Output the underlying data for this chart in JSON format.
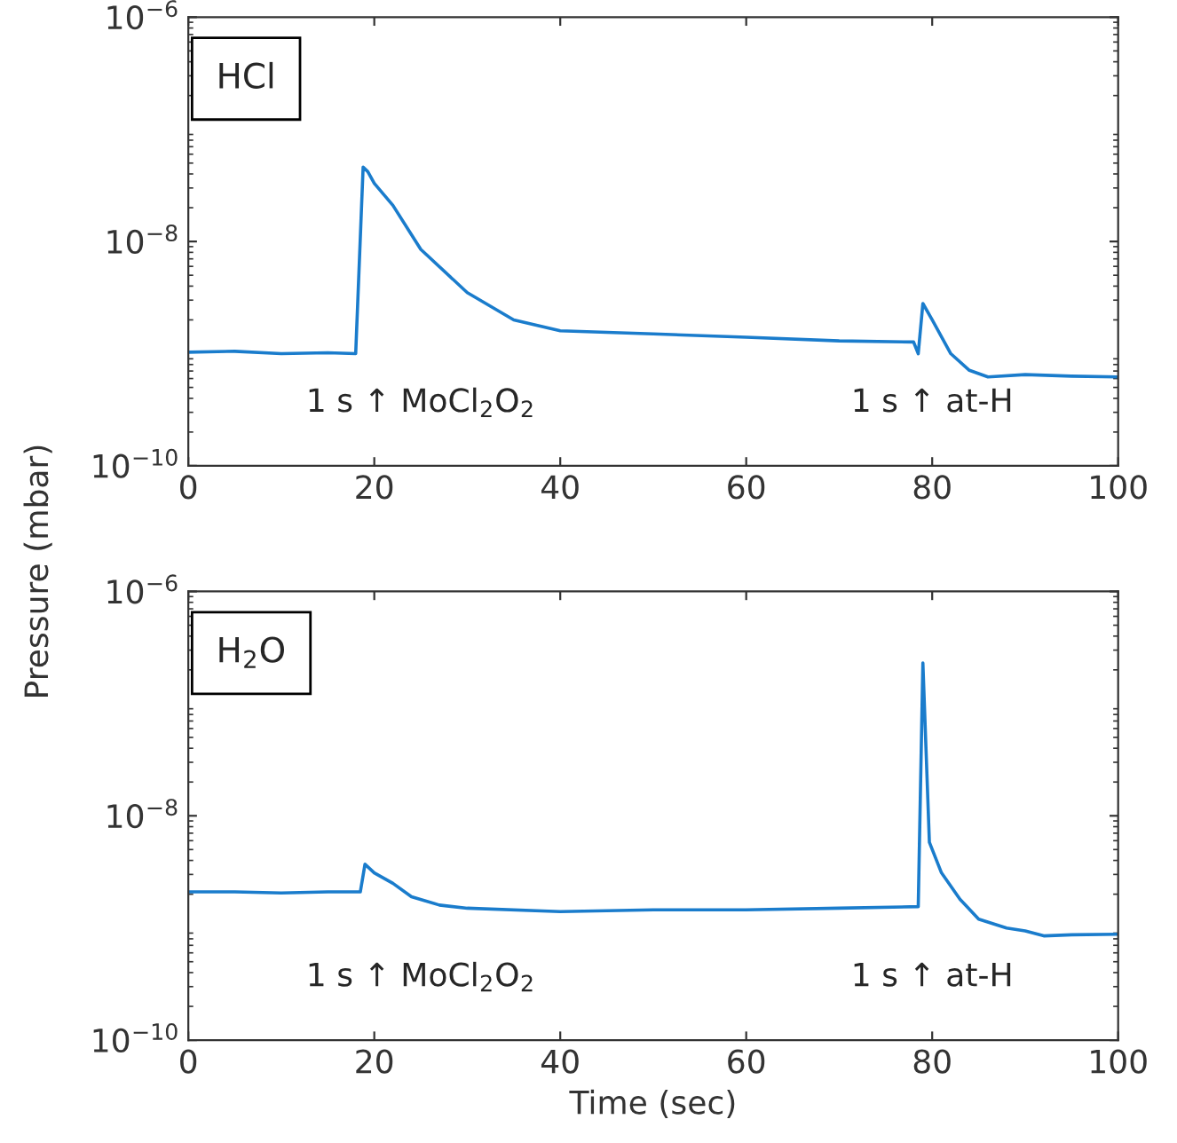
{
  "chart_data": [
    {
      "type": "line",
      "title": "HCl",
      "ylabel": "Pressure (mbar)",
      "log": "y",
      "grid": false,
      "legend": false,
      "xlim": [
        0,
        100
      ],
      "xticks": [
        0,
        20,
        40,
        60,
        80,
        100
      ],
      "ylim": [
        1e-10,
        1e-06
      ],
      "yticks": [
        {
          "value": 1e-10,
          "label": "10$^{−10}$"
        },
        {
          "value": 1e-08,
          "label": "10$^{−8}$"
        },
        {
          "value": 1e-06,
          "label": "10$^{−6}$"
        }
      ],
      "series": [
        {
          "color": "#1a7ccc",
          "x": [
            0,
            5,
            10,
            15,
            18,
            18.8,
            19.3,
            20,
            22,
            25,
            30,
            35,
            40,
            50,
            60,
            70,
            78,
            78.5,
            79,
            80,
            82,
            84,
            86,
            90,
            95,
            100
          ],
          "values": [
            1.03e-09,
            1.05e-09,
            1e-09,
            1.02e-09,
            1e-09,
            4.6e-08,
            4.2e-08,
            3.3e-08,
            2.1e-08,
            8.5e-09,
            3.5e-09,
            2e-09,
            1.6e-09,
            1.5e-09,
            1.4e-09,
            1.3e-09,
            1.27e-09,
            1e-09,
            2.8e-09,
            2e-09,
            1e-09,
            7.1e-10,
            6.2e-10,
            6.5e-10,
            6.3e-10,
            6.2e-10
          ]
        }
      ],
      "annotations": [
        "1 s ↑ MoCl$_{2}$O$_{2}$",
        "1 s ↑ at-H"
      ]
    },
    {
      "type": "line",
      "title": "H$_{2}$O",
      "xlabel": "Time (sec)",
      "log": "y",
      "grid": false,
      "legend": false,
      "xlim": [
        0,
        100
      ],
      "xticks": [
        0,
        20,
        40,
        60,
        80,
        100
      ],
      "ylim": [
        1e-10,
        1e-06
      ],
      "yticks": [
        {
          "value": 1e-10,
          "label": "10$^{−10}$"
        },
        {
          "value": 1e-08,
          "label": "10$^{−8}$"
        },
        {
          "value": 1e-06,
          "label": "10$^{−6}$"
        }
      ],
      "series": [
        {
          "color": "#1a7ccc",
          "x": [
            0,
            5,
            10,
            15,
            18.5,
            19,
            20,
            22,
            24,
            27,
            30,
            40,
            50,
            60,
            70,
            78.5,
            79,
            79.7,
            81,
            83,
            85,
            88,
            90,
            92,
            95,
            100
          ],
          "values": [
            2.1e-09,
            2.1e-09,
            2.05e-09,
            2.1e-09,
            2.1e-09,
            3.7e-09,
            3.1e-09,
            2.5e-09,
            1.9e-09,
            1.6e-09,
            1.5e-09,
            1.4e-09,
            1.45e-09,
            1.45e-09,
            1.5e-09,
            1.55e-09,
            2.3e-07,
            5.8e-09,
            3.1e-09,
            1.8e-09,
            1.2e-09,
            1e-09,
            9.4e-10,
            8.5e-10,
            8.7e-10,
            8.8e-10
          ]
        }
      ],
      "annotations": [
        "1 s ↑ MoCl$_{2}$O$_{2}$",
        "1 s ↑ at-H"
      ]
    }
  ]
}
